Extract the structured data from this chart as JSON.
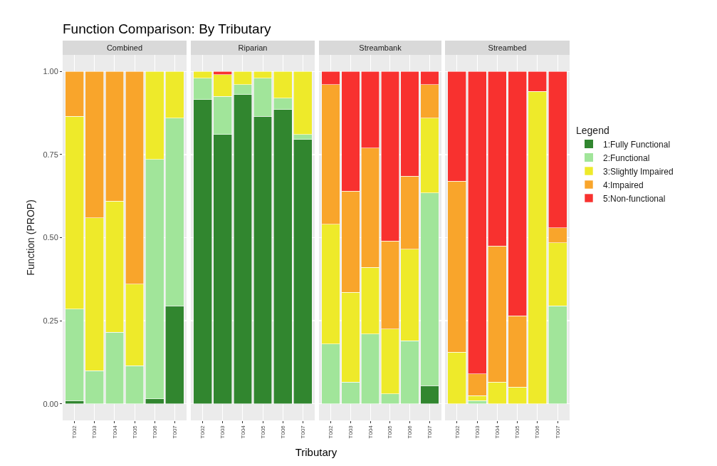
{
  "chart_data": [
    {
      "type": "bar",
      "title": "Combined",
      "annotations": [
        "Function Comparison: By Tributary"
      ],
      "ylabel": "Function (PROP)",
      "stacked": true,
      "grid": true,
      "legend": false,
      "tick_labels": "xy",
      "categories": [
        "T002",
        "T003",
        "T004",
        "T005",
        "T006",
        "T007"
      ],
      "ylim": [
        -0.05,
        1.05
      ],
      "yticks": [
        {
          "value": 0,
          "label": "0.00"
        },
        {
          "value": 0.25,
          "label": "0.25"
        },
        {
          "value": 0.5,
          "label": "0.50"
        },
        {
          "value": 0.75,
          "label": "0.75"
        },
        {
          "value": 1,
          "label": "1.00"
        }
      ],
      "series": [
        {
          "color": "#31862f",
          "values": [
            0.01,
            0,
            0,
            0,
            0.015,
            0.295
          ]
        },
        {
          "color": "#a1e59a",
          "values": [
            0.275,
            0.1,
            0.215,
            0.115,
            0.72,
            0.565
          ]
        },
        {
          "color": "#eeea2a",
          "values": [
            0.58,
            0.46,
            0.395,
            0.245,
            0.265,
            0.14
          ]
        },
        {
          "color": "#f9a52b",
          "values": [
            0.135,
            0.44,
            0.39,
            0.64,
            0,
            0
          ]
        },
        {
          "color": "#f8312f",
          "values": [
            0,
            0,
            0,
            0,
            0,
            0
          ]
        }
      ]
    },
    {
      "type": "bar",
      "title": "Riparian",
      "xlabel": "Tributary",
      "stacked": true,
      "grid": true,
      "legend": false,
      "tick_labels": "x",
      "categories": [
        "T002",
        "T003",
        "T004",
        "T005",
        "T006",
        "T007"
      ],
      "ylim": [
        -0.05,
        1.05
      ],
      "yticks": [
        0,
        0.25,
        0.5,
        0.75,
        1
      ],
      "series": [
        {
          "color": "#31862f",
          "values": [
            0.915,
            0.81,
            0.93,
            0.865,
            0.885,
            0.795
          ]
        },
        {
          "color": "#a1e59a",
          "values": [
            0.065,
            0.115,
            0.03,
            0.115,
            0.035,
            0.015
          ]
        },
        {
          "color": "#eeea2a",
          "values": [
            0.02,
            0.065,
            0.04,
            0.02,
            0.08,
            0.19
          ]
        },
        {
          "color": "#f9a52b",
          "values": [
            0,
            0,
            0,
            0,
            0,
            0
          ]
        },
        {
          "color": "#f8312f",
          "values": [
            0,
            0.01,
            0,
            0,
            0,
            0
          ]
        }
      ]
    },
    {
      "type": "bar",
      "title": "Streambank",
      "stacked": true,
      "grid": true,
      "legend": false,
      "tick_labels": "x",
      "categories": [
        "T002",
        "T003",
        "T004",
        "T005",
        "T006",
        "T007"
      ],
      "ylim": [
        -0.05,
        1.05
      ],
      "yticks": [
        0,
        0.25,
        0.5,
        0.75,
        1
      ],
      "series": [
        {
          "color": "#31862f",
          "values": [
            0,
            0,
            0,
            0,
            0,
            0.055
          ]
        },
        {
          "color": "#a1e59a",
          "values": [
            0.18,
            0.065,
            0.21,
            0.03,
            0.19,
            0.58
          ]
        },
        {
          "color": "#eeea2a",
          "values": [
            0.36,
            0.27,
            0.2,
            0.195,
            0.275,
            0.225
          ]
        },
        {
          "color": "#f9a52b",
          "values": [
            0.42,
            0.305,
            0.36,
            0.265,
            0.22,
            0.1
          ]
        },
        {
          "color": "#f8312f",
          "values": [
            0.04,
            0.36,
            0.23,
            0.51,
            0.315,
            0.04
          ]
        }
      ]
    },
    {
      "type": "bar",
      "title": "Streambed",
      "stacked": true,
      "grid": true,
      "legend": "right",
      "legend_title": "Legend",
      "tick_labels": "x",
      "categories": [
        "T002",
        "T003",
        "T004",
        "T005",
        "T006",
        "T007"
      ],
      "ylim": [
        -0.05,
        1.05
      ],
      "yticks": [
        0,
        0.25,
        0.5,
        0.75,
        1
      ],
      "series": [
        {
          "name": "1:Fully Functional",
          "color": "#31862f",
          "values": [
            0,
            0,
            0,
            0,
            0,
            0
          ]
        },
        {
          "name": "2:Functional",
          "color": "#a1e59a",
          "values": [
            0,
            0.01,
            0,
            0,
            0,
            0.295
          ]
        },
        {
          "name": "3:Slightly Impaired",
          "color": "#eeea2a",
          "values": [
            0.155,
            0.015,
            0.065,
            0.05,
            0.94,
            0.19
          ]
        },
        {
          "name": "4:Impaired",
          "color": "#f9a52b",
          "values": [
            0.515,
            0.065,
            0.41,
            0.215,
            0,
            0.045
          ]
        },
        {
          "name": "5:Non-functional",
          "color": "#f8312f",
          "values": [
            0.33,
            0.91,
            0.525,
            0.735,
            0.06,
            0.47
          ]
        }
      ]
    }
  ]
}
